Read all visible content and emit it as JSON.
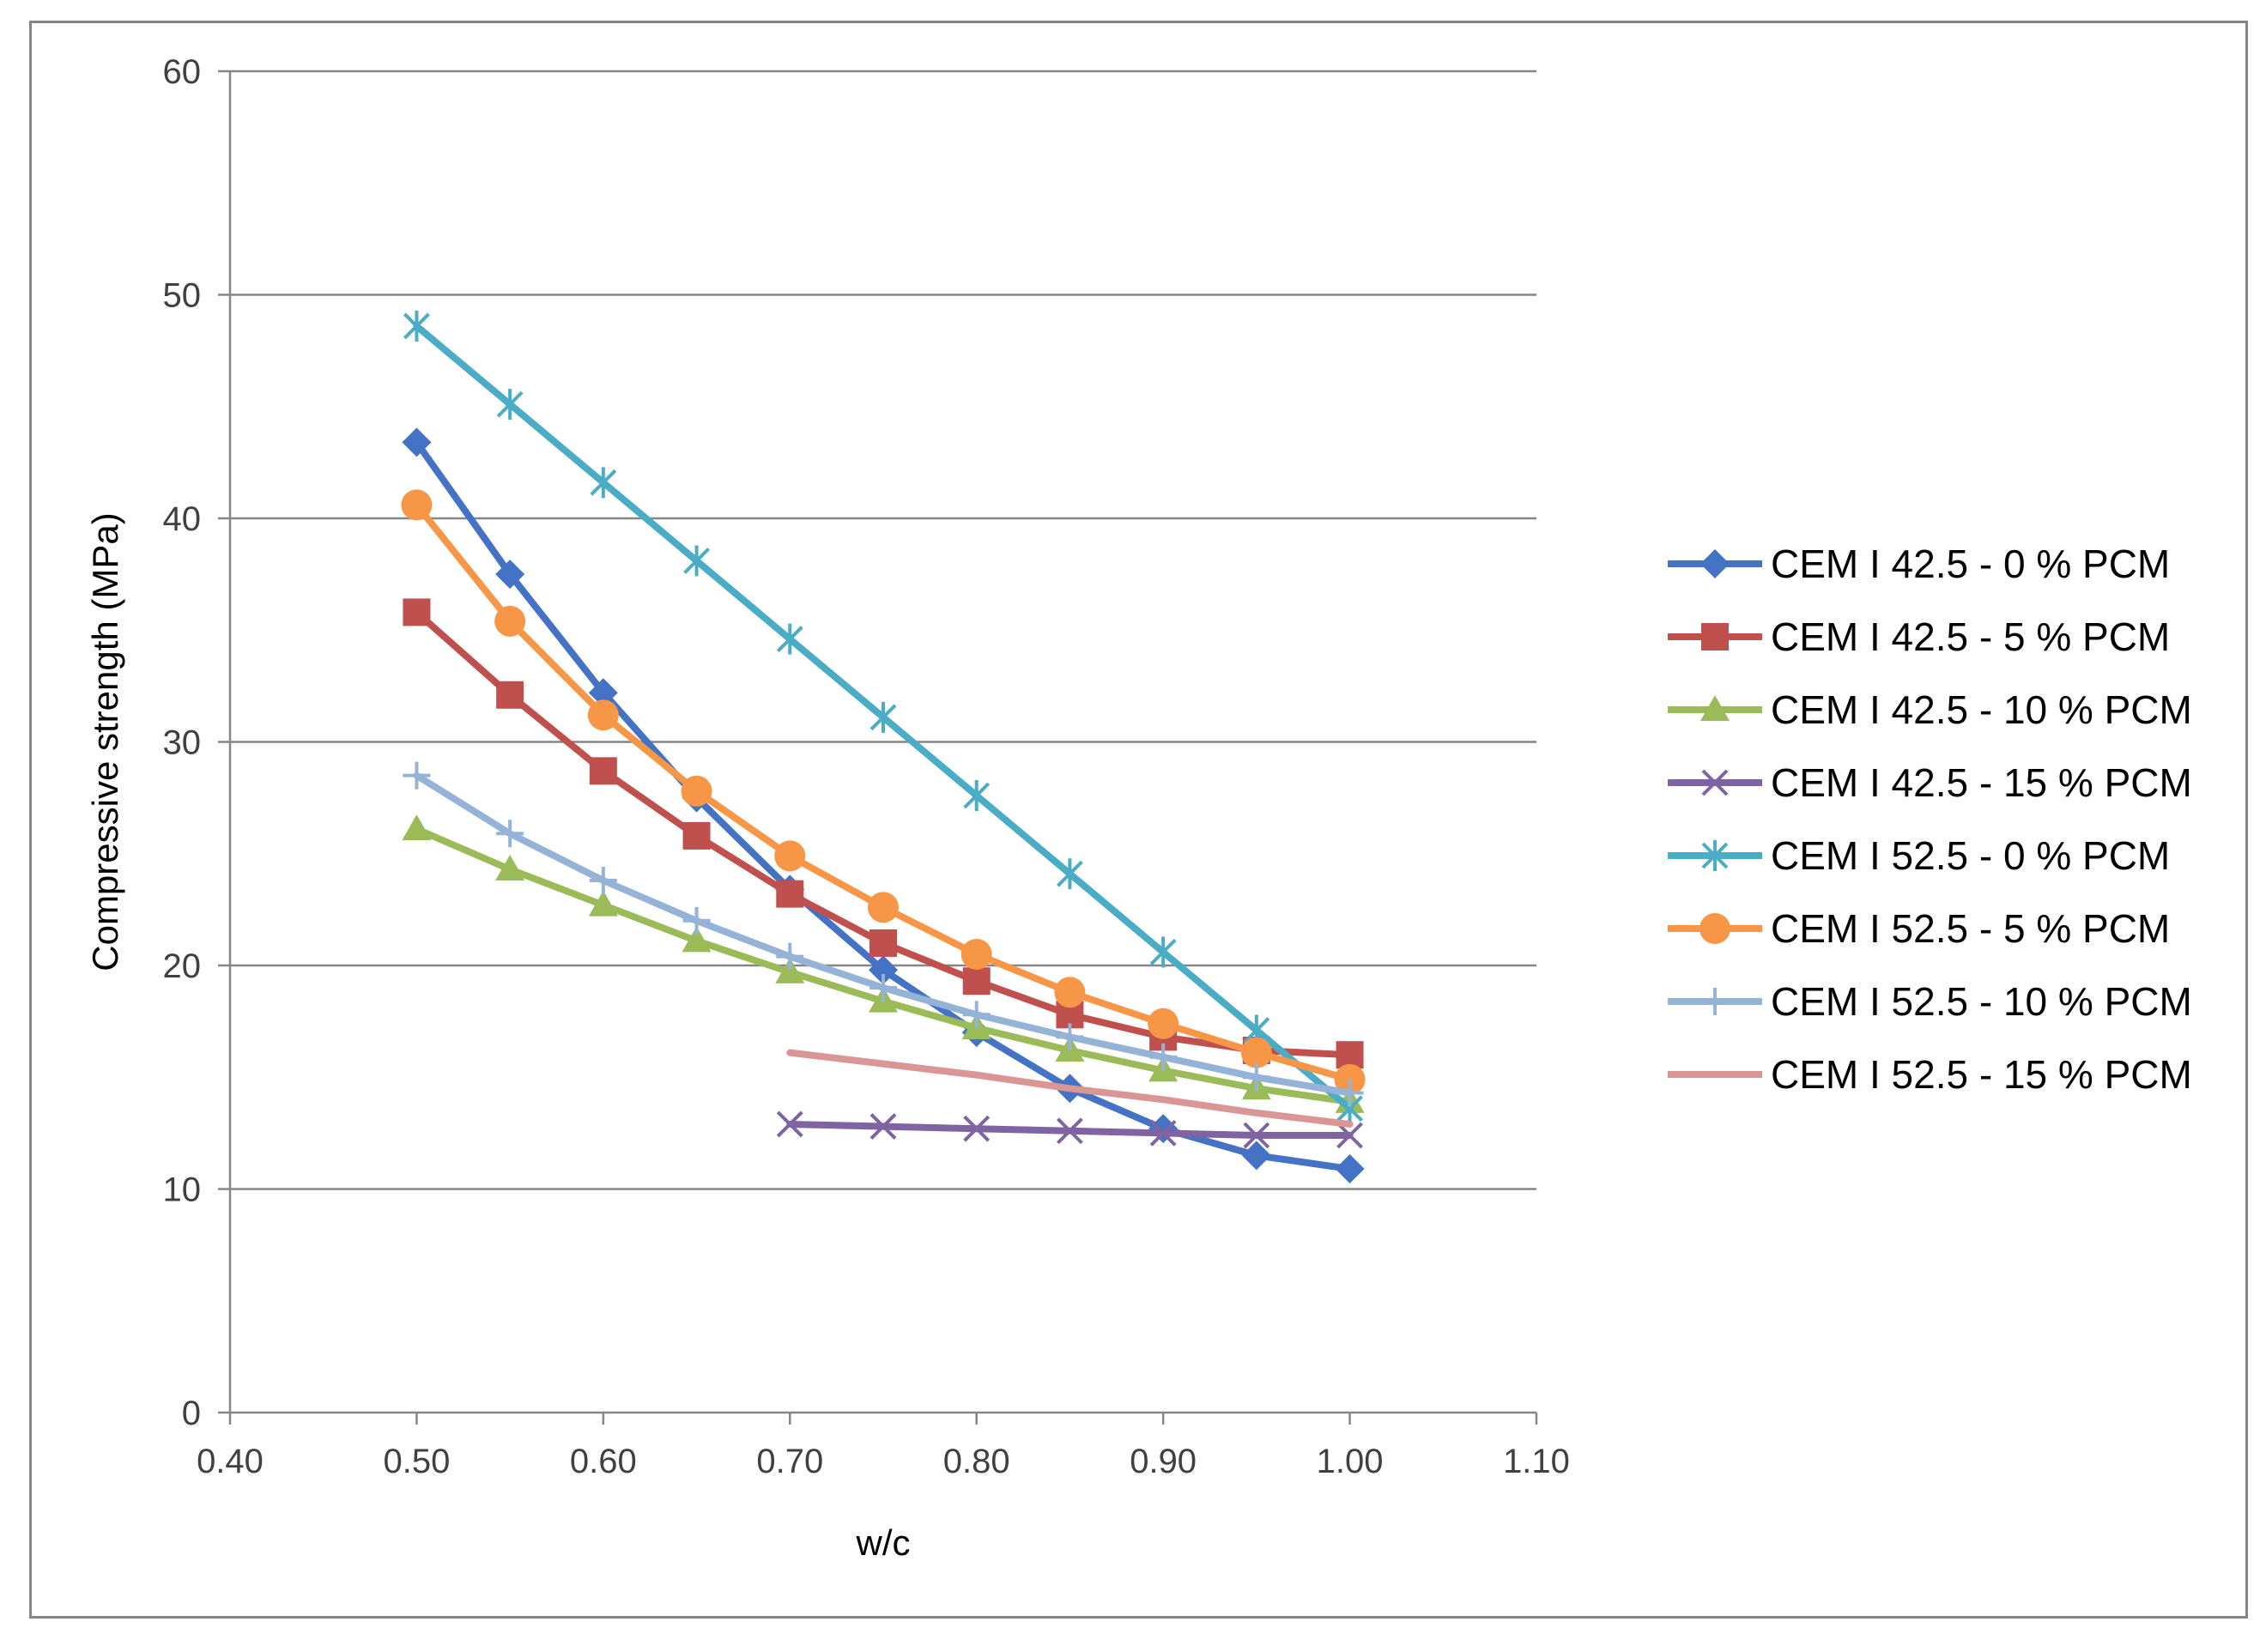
{
  "chart_data": {
    "type": "line",
    "title": "",
    "xlabel": "w/c",
    "ylabel": "Compressive strength (MPa)",
    "xlim": [
      0.4,
      1.1
    ],
    "ylim": [
      0,
      60
    ],
    "xticks": [
      "0.40",
      "0.50",
      "0.60",
      "0.70",
      "0.80",
      "0.90",
      "1.00",
      "1.10"
    ],
    "yticks": [
      "0",
      "10",
      "20",
      "30",
      "40",
      "50",
      "60"
    ],
    "grid": "horizontal",
    "legend_position": "right",
    "series": [
      {
        "name": "CEM I 42.5 - 0 % PCM",
        "color": "#4472C4",
        "marker": "diamond",
        "x": [
          0.5,
          0.55,
          0.6,
          0.65,
          0.7,
          0.75,
          0.8,
          0.85,
          0.9,
          0.95,
          1.0
        ],
        "y": [
          43.4,
          37.5,
          32.2,
          27.5,
          23.4,
          19.8,
          17.0,
          14.5,
          12.7,
          11.5,
          10.9
        ]
      },
      {
        "name": "CEM I 42.5 - 5 % PCM",
        "color": "#C0504D",
        "marker": "square",
        "x": [
          0.5,
          0.55,
          0.6,
          0.65,
          0.7,
          0.75,
          0.8,
          0.85,
          0.9,
          0.95,
          1.0
        ],
        "y": [
          35.8,
          32.1,
          28.7,
          25.8,
          23.2,
          21.0,
          19.3,
          17.8,
          16.8,
          16.2,
          16.0
        ]
      },
      {
        "name": "CEM I 42.5 - 10 % PCM",
        "color": "#9BBB59",
        "marker": "triangle",
        "x": [
          0.5,
          0.55,
          0.6,
          0.65,
          0.7,
          0.75,
          0.8,
          0.85,
          0.9,
          0.95,
          1.0
        ],
        "y": [
          26.1,
          24.3,
          22.7,
          21.1,
          19.7,
          18.4,
          17.2,
          16.2,
          15.3,
          14.5,
          13.9
        ]
      },
      {
        "name": "CEM I 42.5 - 15 % PCM",
        "color": "#8064A2",
        "marker": "x",
        "x": [
          0.7,
          0.75,
          0.8,
          0.85,
          0.9,
          0.95,
          1.0
        ],
        "y": [
          12.9,
          12.8,
          12.7,
          12.6,
          12.5,
          12.4,
          12.4
        ]
      },
      {
        "name": "CEM I 52.5 - 0 % PCM",
        "color": "#4BACC6",
        "marker": "star",
        "x": [
          0.5,
          0.55,
          0.6,
          0.65,
          0.7,
          0.75,
          0.8,
          0.85,
          0.9,
          0.95,
          1.0
        ],
        "y": [
          48.6,
          45.1,
          41.6,
          38.1,
          34.6,
          31.1,
          27.6,
          24.1,
          20.6,
          17.1,
          13.6
        ]
      },
      {
        "name": "CEM I 52.5 - 5 % PCM",
        "color": "#F79646",
        "marker": "circle",
        "x": [
          0.5,
          0.55,
          0.6,
          0.65,
          0.7,
          0.75,
          0.8,
          0.85,
          0.9,
          0.95,
          1.0
        ],
        "y": [
          40.6,
          35.4,
          31.2,
          27.8,
          24.9,
          22.6,
          20.5,
          18.8,
          17.4,
          16.1,
          14.9
        ]
      },
      {
        "name": "CEM I 52.5 - 10 % PCM",
        "color": "#95B3D7",
        "marker": "plus",
        "x": [
          0.5,
          0.55,
          0.6,
          0.65,
          0.7,
          0.75,
          0.8,
          0.85,
          0.9,
          0.95,
          1.0
        ],
        "y": [
          28.5,
          25.9,
          23.8,
          22.0,
          20.4,
          19.0,
          17.8,
          16.8,
          15.9,
          15.0,
          14.3
        ]
      },
      {
        "name": "CEM I 52.5 - 15 % PCM",
        "color": "#D99694",
        "marker": "none",
        "x": [
          0.7,
          0.75,
          0.8,
          0.85,
          0.9,
          0.95,
          1.0
        ],
        "y": [
          16.1,
          15.6,
          15.1,
          14.5,
          14.0,
          13.4,
          12.9
        ]
      }
    ]
  }
}
